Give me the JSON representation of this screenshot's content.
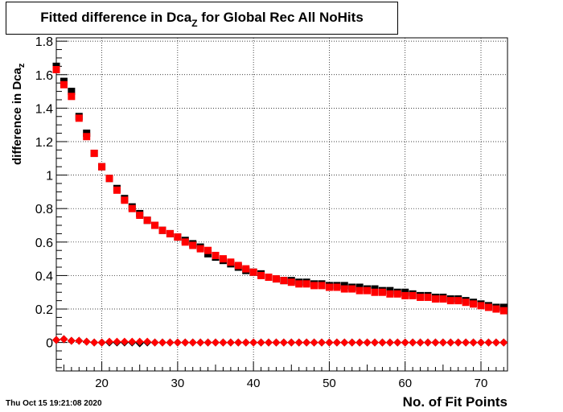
{
  "title": {
    "main": "Fitted difference in Dca",
    "sub": "Z",
    "rest": " for Global Rec All NoHits"
  },
  "timestamp": "Thu Oct 15 19:21:08 2020",
  "chart_data": {
    "type": "scatter",
    "xlabel": "No. of Fit Points",
    "ylabel_main": "difference in Dca",
    "ylabel_sub": "z",
    "xlim": [
      14,
      73.5
    ],
    "ylim": [
      -0.17,
      1.82
    ],
    "xticks": [
      20,
      30,
      40,
      50,
      60,
      70
    ],
    "yticks": [
      0,
      0.2,
      0.4,
      0.6,
      0.8,
      1,
      1.2,
      1.4,
      1.6,
      1.8
    ],
    "ytick_labels": [
      "0",
      "0.2",
      "0.4",
      "0.6",
      "0.8",
      "1",
      "1.2",
      "1.4",
      "1.6",
      "1.8"
    ],
    "grid": true,
    "colors": {
      "series1": "#000000",
      "series2": "#ff0000"
    },
    "x": [
      14,
      15,
      16,
      17,
      18,
      19,
      20,
      21,
      22,
      23,
      24,
      25,
      26,
      27,
      28,
      29,
      30,
      31,
      32,
      33,
      34,
      35,
      36,
      37,
      38,
      39,
      40,
      41,
      42,
      43,
      44,
      45,
      46,
      47,
      48,
      49,
      50,
      51,
      52,
      53,
      54,
      55,
      56,
      57,
      58,
      59,
      60,
      61,
      62,
      63,
      64,
      65,
      66,
      67,
      68,
      69,
      70,
      71,
      72,
      73
    ],
    "series": [
      {
        "marker": "square",
        "values": [
          1.65,
          1.56,
          1.5,
          1.35,
          1.25,
          1.13,
          1.05,
          0.98,
          0.92,
          0.86,
          0.81,
          0.77,
          0.73,
          0.7,
          0.67,
          0.65,
          0.63,
          0.61,
          0.59,
          0.57,
          0.53,
          0.51,
          0.49,
          0.47,
          0.45,
          0.43,
          0.42,
          0.41,
          0.39,
          0.38,
          0.37,
          0.37,
          0.36,
          0.36,
          0.35,
          0.35,
          0.34,
          0.34,
          0.34,
          0.33,
          0.33,
          0.32,
          0.32,
          0.31,
          0.31,
          0.3,
          0.3,
          0.29,
          0.28,
          0.28,
          0.27,
          0.27,
          0.26,
          0.26,
          0.25,
          0.24,
          0.23,
          0.22,
          0.21,
          0.21
        ]
      },
      {
        "marker": "square",
        "values": [
          1.63,
          1.54,
          1.47,
          1.34,
          1.23,
          1.13,
          1.05,
          0.98,
          0.91,
          0.85,
          0.8,
          0.76,
          0.73,
          0.7,
          0.67,
          0.65,
          0.63,
          0.6,
          0.58,
          0.56,
          0.55,
          0.52,
          0.5,
          0.48,
          0.46,
          0.44,
          0.42,
          0.4,
          0.39,
          0.38,
          0.37,
          0.36,
          0.35,
          0.35,
          0.34,
          0.34,
          0.33,
          0.33,
          0.32,
          0.32,
          0.31,
          0.31,
          0.3,
          0.3,
          0.29,
          0.29,
          0.28,
          0.28,
          0.27,
          0.27,
          0.26,
          0.26,
          0.25,
          0.25,
          0.24,
          0.23,
          0.22,
          0.21,
          0.2,
          0.19
        ]
      },
      {
        "marker": "diamond",
        "values": [
          0.015,
          0.02,
          0.01,
          0.01,
          0.005,
          0.0,
          0.0,
          0.0,
          0.0,
          0.0,
          0.0,
          -0.005,
          0.0,
          0.0,
          0.0,
          0.0,
          0.0,
          0.0,
          0.0,
          0.0,
          0.0,
          0.0,
          0.0,
          0.0,
          0.0,
          0.0,
          0.0,
          0.0,
          0.0,
          0.0,
          0.0,
          0.0,
          0.0,
          0.0,
          0.0,
          0.0,
          0.0,
          0.0,
          0.0,
          0.0,
          0.0,
          0.0,
          0.0,
          0.0,
          0.0,
          0.0,
          0.0,
          0.0,
          0.0,
          0.0,
          0.0,
          0.0,
          0.0,
          0.0,
          0.0,
          0.0,
          0.0,
          0.0,
          0.0,
          0.0
        ]
      },
      {
        "marker": "diamond",
        "values": [
          0.015,
          0.02,
          0.01,
          0.01,
          0.005,
          0.0,
          0.0,
          0.005,
          0.005,
          0.005,
          0.005,
          0.005,
          0.005,
          0.0,
          0.0,
          0.0,
          0.0,
          0.0,
          0.0,
          0.0,
          0.0,
          0.0,
          0.0,
          0.0,
          0.0,
          0.0,
          0.0,
          0.0,
          0.0,
          0.0,
          0.0,
          0.0,
          0.0,
          0.0,
          0.0,
          0.0,
          0.0,
          0.0,
          0.0,
          0.0,
          0.0,
          0.0,
          0.0,
          0.0,
          0.0,
          0.0,
          0.0,
          0.0,
          0.0,
          0.0,
          0.0,
          0.0,
          0.0,
          0.0,
          0.0,
          0.0,
          0.0,
          0.0,
          0.0,
          0.0
        ]
      }
    ]
  }
}
